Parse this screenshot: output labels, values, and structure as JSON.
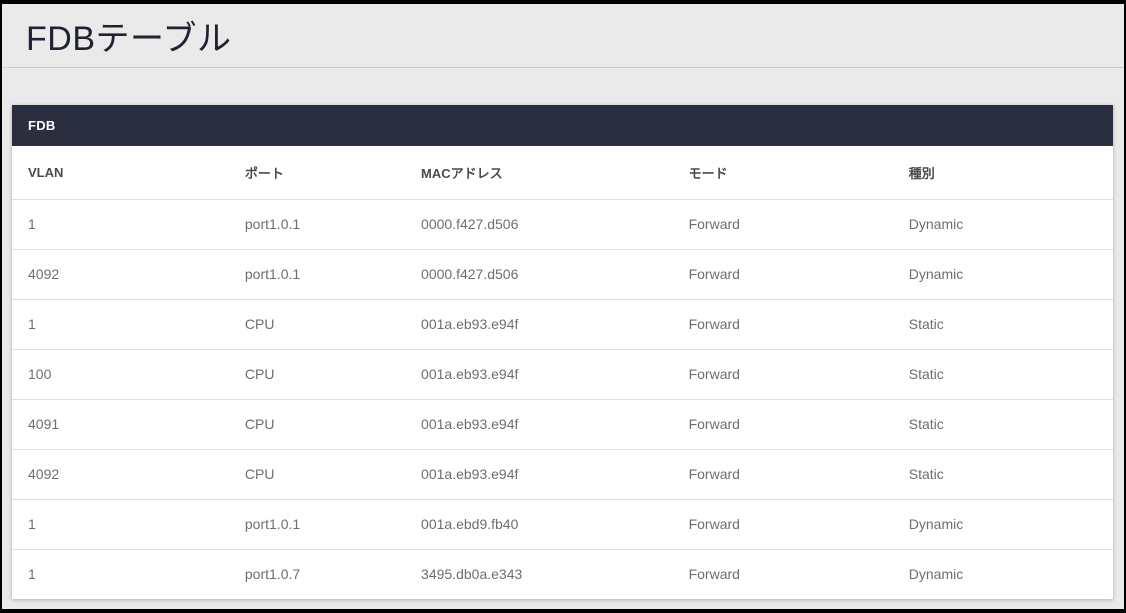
{
  "page": {
    "title": "FDBテーブル"
  },
  "card": {
    "header": "FDB"
  },
  "table": {
    "columns": [
      "VLAN",
      "ポート",
      "MACアドレス",
      "モード",
      "種別"
    ],
    "rows": [
      {
        "vlan": "1",
        "port": "port1.0.1",
        "mac": "0000.f427.d506",
        "mode": "Forward",
        "type": "Dynamic"
      },
      {
        "vlan": "4092",
        "port": "port1.0.1",
        "mac": "0000.f427.d506",
        "mode": "Forward",
        "type": "Dynamic"
      },
      {
        "vlan": "1",
        "port": "CPU",
        "mac": "001a.eb93.e94f",
        "mode": "Forward",
        "type": "Static"
      },
      {
        "vlan": "100",
        "port": "CPU",
        "mac": "001a.eb93.e94f",
        "mode": "Forward",
        "type": "Static"
      },
      {
        "vlan": "4091",
        "port": "CPU",
        "mac": "001a.eb93.e94f",
        "mode": "Forward",
        "type": "Static"
      },
      {
        "vlan": "4092",
        "port": "CPU",
        "mac": "001a.eb93.e94f",
        "mode": "Forward",
        "type": "Static"
      },
      {
        "vlan": "1",
        "port": "port1.0.1",
        "mac": "001a.ebd9.fb40",
        "mode": "Forward",
        "type": "Dynamic"
      },
      {
        "vlan": "1",
        "port": "port1.0.7",
        "mac": "3495.db0a.e343",
        "mode": "Forward",
        "type": "Dynamic"
      }
    ]
  },
  "colors": {
    "page_background": "#eaeaea",
    "card_header_background": "#2b2e3f",
    "card_header_text": "#ffffff",
    "title_text": "#1f2230",
    "column_header_text": "#4b4b4b",
    "cell_text": "#6e6e6e",
    "row_divider": "#e0e0e0",
    "outer_border": "#000000"
  }
}
